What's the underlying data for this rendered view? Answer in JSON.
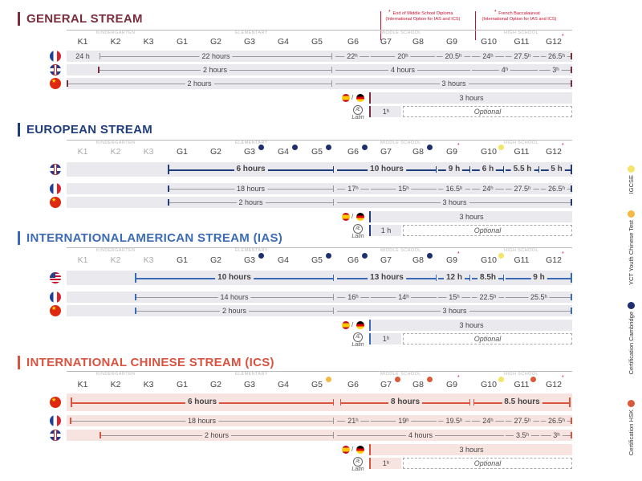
{
  "notes": {
    "note1": [
      "End of Middle School Diploma",
      "(International Option for IAS and ICS)"
    ],
    "note2": [
      "French Baccalaureat",
      "(International Option for IAS and ICS)"
    ]
  },
  "grades": [
    "K1",
    "K2",
    "K3",
    "G1",
    "G2",
    "G3",
    "G4",
    "G5",
    "G6",
    "G7",
    "G8",
    "G9",
    "G10",
    "G11",
    "G12"
  ],
  "levels": [
    "KINDERGARTEN",
    "ELEMENTARY",
    "MIDDLE SCHOOL",
    "HIGH SCHOOL"
  ],
  "common": {
    "latin": "Latin",
    "ae": "Æ",
    "optional": "Optional",
    "slash": "/",
    "latin_hours": "1ʰ",
    "latin_hours_bold": "1 h"
  },
  "colors": {
    "general": "#7a2d3c",
    "european": "#1f3d7a",
    "ias": "#3b6bb5",
    "ics": "#d9533f",
    "star": "#c8102e"
  },
  "legend": [
    {
      "label": "IGCSE",
      "icon": "igcse-badge-icon"
    },
    {
      "label": "YCT Youth Chinese Test",
      "icon": "yct-badge-icon"
    },
    {
      "label": "Certification Cambridge",
      "icon": "cambridge-badge-icon"
    },
    {
      "label": "Certification HSK",
      "icon": "hsk-badge-icon"
    }
  ],
  "sections": [
    {
      "title": "GENERAL STREAM",
      "rows": [
        [
          "24 h",
          "22 hours",
          "22ʰ",
          "20ʰ",
          "20.5ʰ",
          "24ʰ",
          "27.5ʰ",
          "26.5ʰ"
        ],
        [
          "2 hours",
          "4 hours",
          "4ʰ",
          "3ʰ"
        ],
        [
          "2 hours",
          "3 hours"
        ],
        [
          "3 hours"
        ]
      ]
    },
    {
      "title": "EUROPEAN STREAM",
      "rows": [
        [
          "6 hours",
          "10 hours",
          "9 h",
          "6 h",
          "5.5 h",
          "5 h"
        ],
        [
          "18 hours",
          "17ʰ",
          "15ʰ",
          "16.5ʰ",
          "24ʰ",
          "27.5ʰ",
          "26.5ʰ"
        ],
        [
          "2 hours",
          "3 hours"
        ],
        [
          "3 hours"
        ]
      ]
    },
    {
      "title": "INTERNATIONALAMERICAN STREAM (IAS)",
      "rows": [
        [
          "10 hours",
          "13 hours",
          "12 h",
          "8.5h",
          "9 h"
        ],
        [
          "14 hours",
          "16ʰ",
          "14ʰ",
          "15ʰ",
          "22.5ʰ",
          "25.5ʰ"
        ],
        [
          "2 hours",
          "3 hours"
        ],
        [
          "3 hours"
        ]
      ]
    },
    {
      "title": "INTERNATIONAL CHINESE STREAM (ICS)",
      "rows": [
        [
          "6 hours",
          "8 hours",
          "8.5 hours"
        ],
        [
          "18 hours",
          "21ʰ",
          "19ʰ",
          "19.5ʰ",
          "24ʰ",
          "27.5ʰ",
          "26.5ʰ"
        ],
        [
          "2 hours",
          "4 hours",
          "3.5ʰ",
          "3ʰ"
        ],
        [
          "3 hours"
        ]
      ]
    }
  ]
}
